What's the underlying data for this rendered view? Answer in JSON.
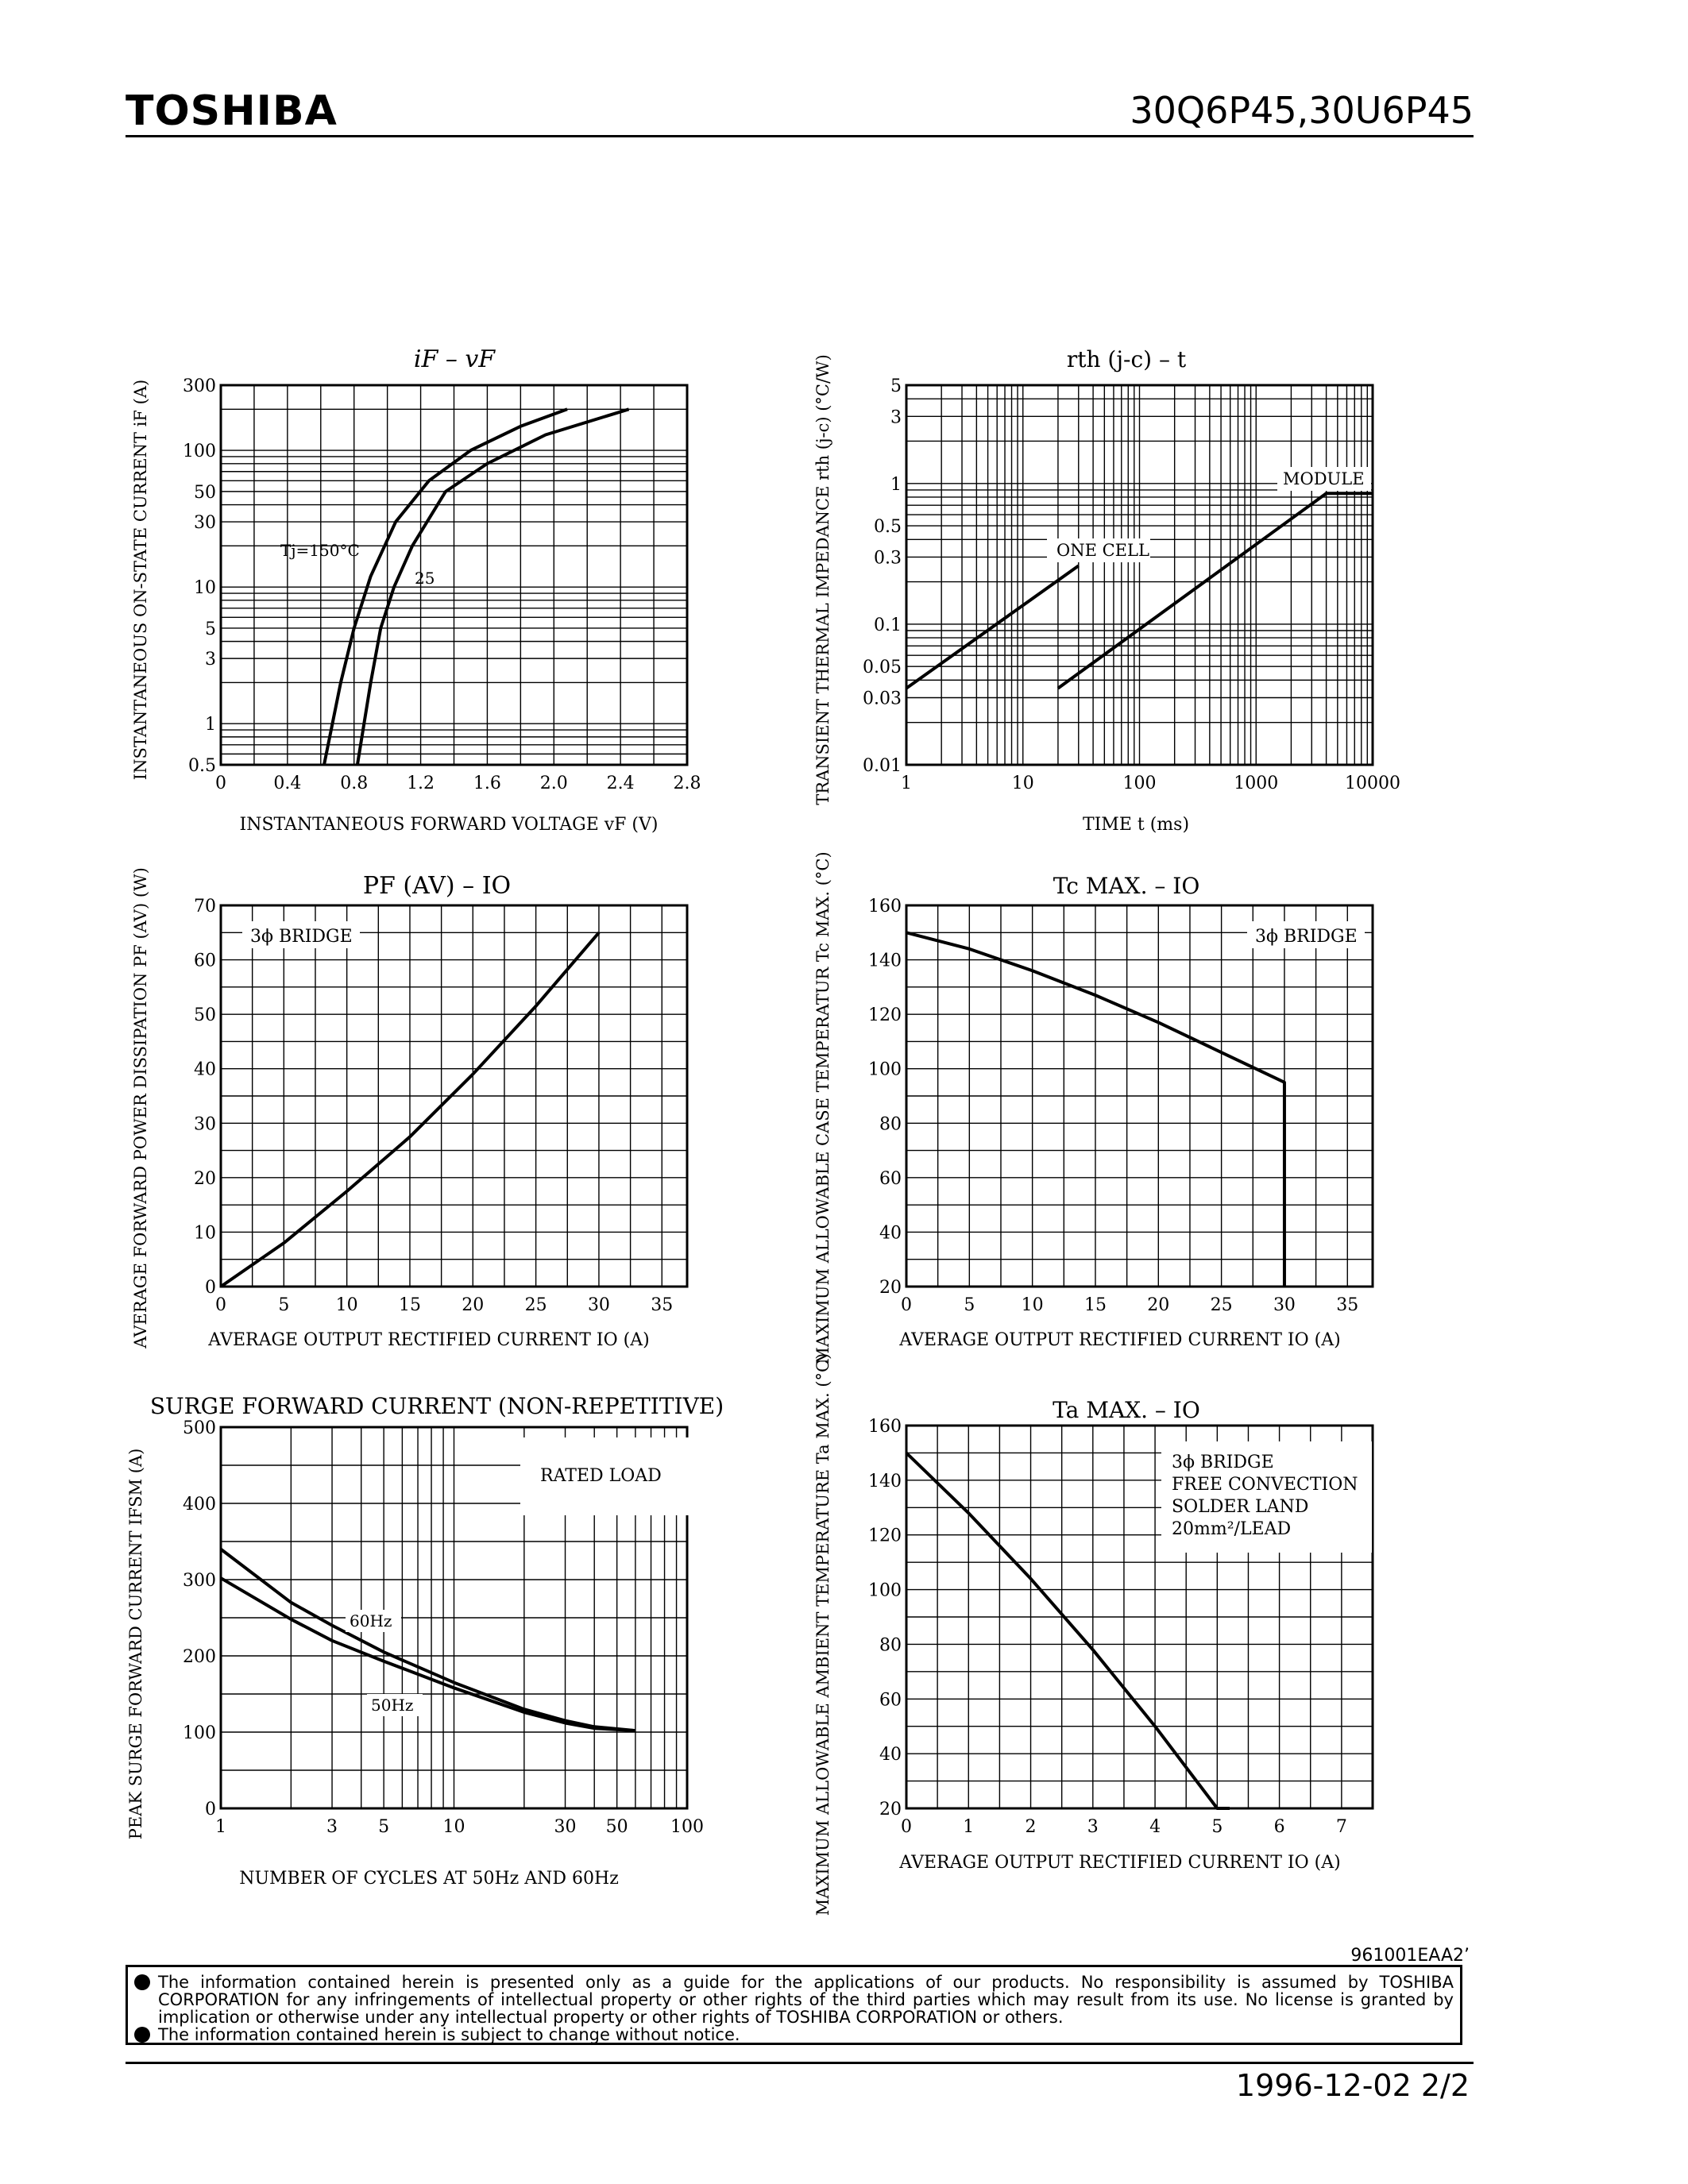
{
  "header": {
    "brand": "TOSHIBA",
    "part": "30Q6P45,30U6P45"
  },
  "footer": {
    "code": "961001EAA2’",
    "date_page": "1996-12-02   2/2"
  },
  "notice": [
    "The information contained herein is presented only as a guide for the applications of our products. No responsibility is assumed by TOSHIBA CORPORATION for any infringements of intellectual property or other rights of the third parties which may result from its use. No license is granted by implication or otherwise under any intellectual property or other rights of TOSHIBA CORPORATION or others.",
    "The information contained herein is subject to change without notice."
  ],
  "chart_data": [
    {
      "type": "line",
      "title": "iF – vF",
      "xlabel": "INSTANTANEOUS FORWARD VOLTAGE vF (V)",
      "ylabel": "INSTANTANEOUS ON-STATE CURRENT iF (A)",
      "yscale": "log",
      "xlim": [
        0,
        2.8
      ],
      "ylim": [
        0.5,
        300
      ],
      "xticks": [
        0,
        0.4,
        0.8,
        1.2,
        1.6,
        2.0,
        2.4,
        2.8
      ],
      "xtick_labels": [
        "0",
        "0.4",
        "0.8",
        "1.2",
        "1.6",
        "2.0",
        "2.4",
        "2.8"
      ],
      "yticks": [
        0.5,
        1,
        3,
        5,
        10,
        30,
        50,
        100,
        300
      ],
      "ytick_labels": [
        "0.5",
        "1",
        "3",
        "5",
        "10",
        "30",
        "50",
        "100",
        "300"
      ],
      "series": [
        {
          "name": "Tj=150°C",
          "x": [
            0.62,
            0.67,
            0.72,
            0.8,
            0.9,
            1.05,
            1.25,
            1.5,
            1.8,
            2.08
          ],
          "y": [
            0.5,
            1,
            2,
            5,
            12,
            30,
            60,
            100,
            150,
            200
          ]
        },
        {
          "name": "25",
          "x": [
            0.82,
            0.86,
            0.9,
            0.96,
            1.04,
            1.15,
            1.35,
            1.6,
            1.95,
            2.45
          ],
          "y": [
            0.5,
            1,
            2,
            5,
            10,
            20,
            50,
            80,
            130,
            200
          ]
        }
      ],
      "annotations": [
        "Tj=150°C",
        "25"
      ]
    },
    {
      "type": "line",
      "title": "rth (j-c) – t",
      "xlabel": "TIME  t  (ms)",
      "ylabel": "TRANSIENT THERMAL IMPEDANCE rth (j-c) (°C/W)",
      "xscale": "log",
      "yscale": "log",
      "xlim": [
        1,
        10000
      ],
      "ylim": [
        0.01,
        5
      ],
      "xticks": [
        1,
        10,
        100,
        1000,
        10000
      ],
      "xtick_labels": [
        "1",
        "10",
        "100",
        "1000",
        "10000"
      ],
      "yticks": [
        0.01,
        0.03,
        0.05,
        0.1,
        0.3,
        0.5,
        1,
        3,
        5
      ],
      "ytick_labels": [
        "0.01",
        "0.03",
        "0.05",
        "0.1",
        "0.3",
        "0.5",
        "1",
        "3",
        "5"
      ],
      "series": [
        {
          "name": "ONE CELL",
          "x": [
            1,
            30
          ],
          "y": [
            0.035,
            0.26
          ]
        },
        {
          "name": "MODULE",
          "x": [
            20,
            4000,
            10000
          ],
          "y": [
            0.035,
            0.85,
            0.85
          ]
        }
      ],
      "annotations": [
        "ONE CELL",
        "MODULE"
      ]
    },
    {
      "type": "line",
      "title": "PF (AV) – IO",
      "xlabel": "AVERAGE OUTPUT RECTIFIED CURRENT IO (A)",
      "ylabel": "AVERAGE FORWARD POWER DISSIPATION PF (AV) (W)",
      "xlim": [
        0,
        37
      ],
      "ylim": [
        0,
        70
      ],
      "xticks": [
        0,
        5,
        10,
        15,
        20,
        25,
        30,
        35
      ],
      "yticks": [
        0,
        10,
        20,
        30,
        40,
        50,
        60,
        70
      ],
      "series": [
        {
          "name": "",
          "x": [
            0,
            5,
            10,
            15,
            20,
            25,
            30
          ],
          "y": [
            0,
            8,
            17.5,
            27.5,
            39,
            51.5,
            65
          ]
        }
      ],
      "annotations": [
        "3ϕ BRIDGE"
      ]
    },
    {
      "type": "line",
      "title": "Tc MAX. – IO",
      "xlabel": "AVERAGE OUTPUT RECTIFIED CURRENT IO (A)",
      "ylabel": "MAXIMUM ALLOWABLE CASE TEMPERATUR Tc MAX. (°C)",
      "xlim": [
        0,
        37
      ],
      "ylim": [
        20,
        160
      ],
      "xticks": [
        0,
        5,
        10,
        15,
        20,
        25,
        30,
        35
      ],
      "yticks": [
        20,
        40,
        60,
        80,
        100,
        120,
        140,
        160
      ],
      "series": [
        {
          "name": "",
          "x": [
            0,
            5,
            10,
            15,
            20,
            25,
            30,
            30
          ],
          "y": [
            150,
            144,
            136,
            127,
            117,
            106,
            95,
            20
          ]
        }
      ],
      "annotations": [
        "3ϕ BRIDGE"
      ]
    },
    {
      "type": "line",
      "title": "SURGE FORWARD CURRENT (NON-REPETITIVE)",
      "xlabel": "NUMBER OF CYCLES AT 50Hz AND 60Hz",
      "ylabel": "PEAK SURGE FORWARD CURRENT IFSM (A)",
      "xscale": "log",
      "xlim": [
        1,
        100
      ],
      "ylim": [
        0,
        500
      ],
      "xticks": [
        1,
        3,
        5,
        10,
        30,
        50,
        100
      ],
      "yticks": [
        0,
        100,
        200,
        300,
        400,
        500
      ],
      "series": [
        {
          "name": "60Hz",
          "x": [
            1,
            2,
            3,
            5,
            10,
            20,
            30,
            40,
            60
          ],
          "y": [
            340,
            270,
            240,
            205,
            165,
            130,
            115,
            107,
            102
          ]
        },
        {
          "name": "50Hz",
          "x": [
            1,
            2,
            3,
            5,
            10,
            20,
            30,
            40,
            60
          ],
          "y": [
            302,
            248,
            220,
            193,
            158,
            126,
            112,
            105,
            102
          ]
        }
      ],
      "annotations": [
        "RATED LOAD",
        "60Hz",
        "50Hz"
      ]
    },
    {
      "type": "line",
      "title": "Ta MAX. – IO",
      "xlabel": "AVERAGE OUTPUT RECTIFIED CURRENT IO (A)",
      "ylabel": "MAXIMUM ALLOWABLE AMBIENT TEMPERATURE Ta MAX. (°C)",
      "xlim": [
        0,
        7.5
      ],
      "ylim": [
        20,
        160
      ],
      "xticks": [
        0,
        1,
        2,
        3,
        4,
        5,
        6,
        7
      ],
      "yticks": [
        20,
        40,
        60,
        80,
        100,
        120,
        140,
        160
      ],
      "series": [
        {
          "name": "",
          "x": [
            0,
            1,
            2,
            3,
            4,
            4.5,
            5,
            5.2
          ],
          "y": [
            150,
            128,
            104,
            78,
            50,
            35,
            20,
            20
          ]
        }
      ],
      "annotations": [
        "3ϕ BRIDGE",
        "FREE CONVECTION",
        "SOLDER LAND",
        "20mm²/LEAD"
      ]
    }
  ]
}
